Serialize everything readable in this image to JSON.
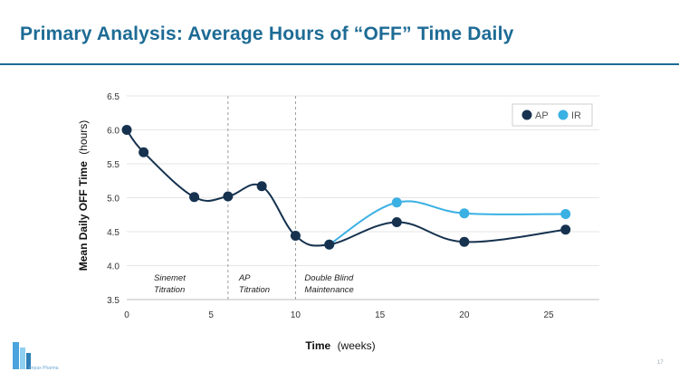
{
  "slide": {
    "title": "Primary Analysis: Average Hours of “OFF” Time Daily",
    "page_number": "17",
    "logo_text": "Impax Pharma",
    "brand_color": "#1d6b95"
  },
  "chart_data": {
    "type": "line",
    "title": "",
    "xlabel": "Time",
    "xlabel_suffix": "(weeks)",
    "ylabel": "Mean Daily OFF Time",
    "ylabel_suffix": "(hours)",
    "xlim": [
      0,
      28
    ],
    "ylim": [
      3.5,
      6.5
    ],
    "xticks": [
      0,
      5,
      10,
      15,
      20,
      25
    ],
    "yticks": [
      3.5,
      4.0,
      4.5,
      5.0,
      5.5,
      6.0,
      6.5
    ],
    "ytick_labels": [
      "3.5",
      "4.0",
      "4.5",
      "5.0",
      "5.5",
      "6.0",
      "6.5"
    ],
    "grid": true,
    "legend_position": "top-right",
    "series": [
      {
        "name": "AP",
        "color": "#16324f",
        "x": [
          0,
          1,
          4,
          6,
          8,
          10,
          12,
          16,
          20,
          26
        ],
        "y": [
          6.0,
          5.67,
          5.01,
          5.02,
          5.17,
          4.44,
          4.31,
          4.64,
          4.35,
          4.53
        ]
      },
      {
        "name": "IR",
        "color": "#3ab0e3",
        "x": [
          12,
          16,
          20,
          26
        ],
        "y": [
          4.31,
          4.93,
          4.77,
          4.76
        ]
      }
    ],
    "phase_dividers": [
      6,
      10
    ],
    "phases": [
      {
        "line1": "Sinemet",
        "line2": "Titration",
        "x_start": 0,
        "x_end": 6
      },
      {
        "line1": "AP",
        "line2": "Titration",
        "x_start": 6,
        "x_end": 10
      },
      {
        "line1": "Double Blind",
        "line2": "Maintenance",
        "x_start": 10,
        "x_end": 28
      }
    ]
  }
}
